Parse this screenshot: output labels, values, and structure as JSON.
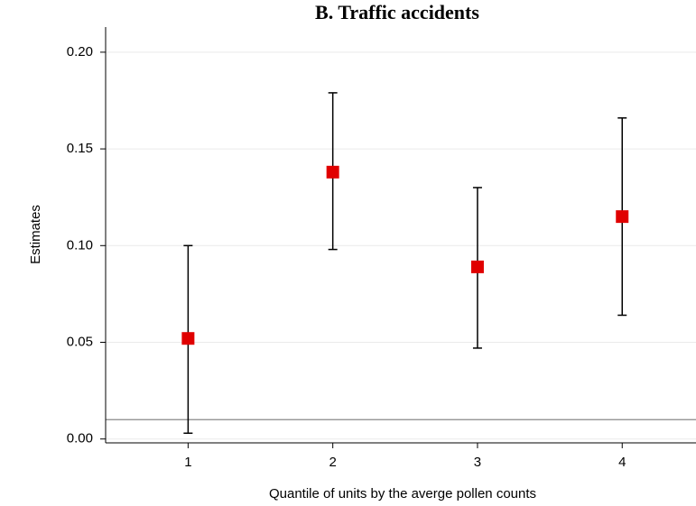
{
  "chart_data": {
    "type": "errorbar",
    "title": "B. Traffic accidents",
    "x_label": "Quantile of units by the averge pollen counts",
    "y_label": "Estimates",
    "x": [
      1,
      2,
      3,
      4
    ],
    "series": [
      {
        "color": "#e00000",
        "values": [
          0.052,
          0.138,
          0.089,
          0.115
        ],
        "lower": [
          0.003,
          0.098,
          0.047,
          0.064
        ],
        "upper": [
          0.1,
          0.179,
          0.13,
          0.166
        ]
      }
    ],
    "reference_line": 0.01,
    "xlim": [
      0.43,
      4.51
    ],
    "xticks": [
      1,
      2,
      3,
      4
    ],
    "ylim": [
      -0.002,
      0.213
    ],
    "yticks": [
      {
        "value": 0,
        "label": "0.00"
      },
      {
        "value": 0.05,
        "label": "0.05"
      },
      {
        "value": 0.1,
        "label": "0.10"
      },
      {
        "value": 0.15,
        "label": "0.15"
      },
      {
        "value": 0.2,
        "label": "0.20"
      }
    ],
    "grid": true
  }
}
